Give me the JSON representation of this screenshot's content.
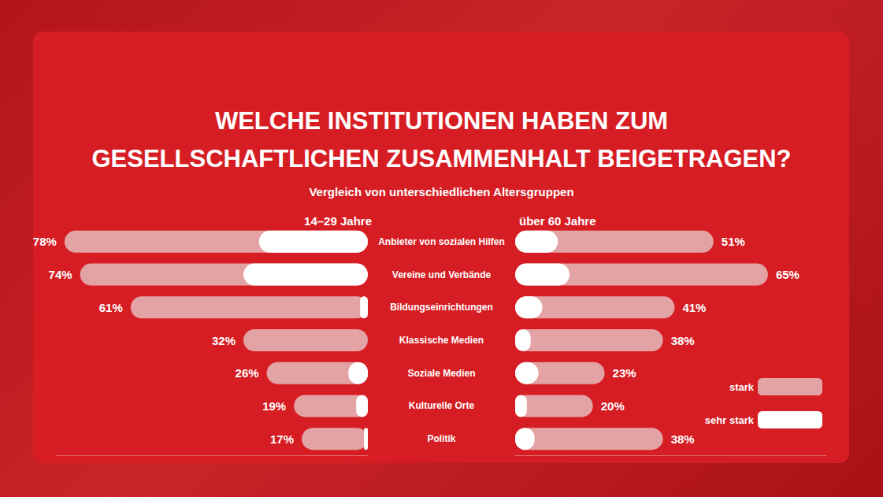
{
  "title": "WELCHE INSTITUTIONEN HABEN ZUM\nGESELLSCHAFTLICHEN ZUSAMMENHALT BEIGETRAGEN?",
  "subtitle": "Vergleich von unterschiedlichen Altersgruppen",
  "chart_data": [
    {
      "type": "bar",
      "orientation": "horizontal",
      "title": "14–29 Jahre",
      "categories": [
        "Anbieter von sozialen Hilfen",
        "Vereine und Verbände",
        "Bildungseinrichtungen",
        "Klassische Medien",
        "Soziale Medien",
        "Kulturelle Orte",
        "Politik"
      ],
      "xlim": [
        0,
        80
      ],
      "tick_labels": false,
      "data_labels": true,
      "series": [
        {
          "name": "stark",
          "color": "#e3a2a4",
          "values": [
            78,
            74,
            61,
            32,
            26,
            19,
            17
          ],
          "value_labels": [
            "78%",
            "74%",
            "61%",
            "32%",
            "26%",
            "19%",
            "17%"
          ]
        },
        {
          "name": "sehr stark",
          "color": "#ffffff",
          "values": [
            28,
            32,
            2,
            0,
            5,
            3,
            1
          ]
        }
      ]
    },
    {
      "type": "bar",
      "orientation": "horizontal",
      "title": "über 60 Jahre",
      "categories": [
        "Anbieter von sozialen Hilfen",
        "Vereine und Verbände",
        "Bildungseinrichtungen",
        "Klassische Medien",
        "Soziale Medien",
        "Kulturelle Orte",
        "Politik"
      ],
      "xlim": [
        0,
        80
      ],
      "tick_labels": false,
      "data_labels": true,
      "legend": "lower right",
      "series": [
        {
          "name": "stark",
          "color": "#e3a2a4",
          "values": [
            51,
            65,
            41,
            38,
            23,
            20,
            38
          ],
          "value_labels": [
            "51%",
            "65%",
            "41%",
            "38%",
            "23%",
            "20%",
            "38%"
          ]
        },
        {
          "name": "sehr stark",
          "color": "#ffffff",
          "values": [
            11,
            14,
            7,
            4,
            6,
            3,
            5
          ]
        }
      ]
    }
  ]
}
